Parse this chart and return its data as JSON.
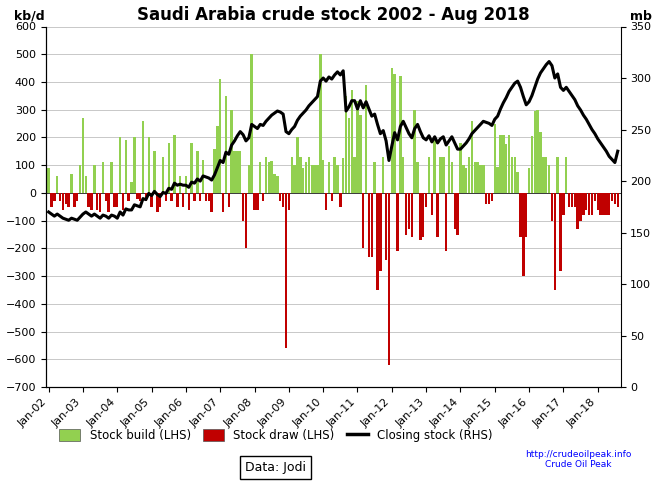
{
  "title": "Saudi Arabia crude stock 2002 - Aug 2018",
  "ylabel_left": "kb/d",
  "ylabel_right": "mb",
  "ylim_left": [
    -700,
    600
  ],
  "ylim_right": [
    0,
    350
  ],
  "yticks_left": [
    -700,
    -600,
    -500,
    -400,
    -300,
    -200,
    -100,
    0,
    100,
    200,
    300,
    400,
    500,
    600
  ],
  "yticks_right": [
    0,
    50,
    100,
    150,
    200,
    250,
    300,
    350
  ],
  "bar_color_pos": "#92D050",
  "bar_color_neg": "#C00000",
  "line_color": "#000000",
  "data_source": "Data: Jodi",
  "bar_values": [
    90,
    -50,
    -30,
    60,
    -30,
    -60,
    -40,
    -50,
    70,
    -50,
    -30,
    100,
    270,
    60,
    -50,
    -60,
    100,
    -60,
    -70,
    110,
    -30,
    -70,
    110,
    -50,
    -50,
    200,
    -60,
    190,
    -30,
    40,
    200,
    -20,
    -30,
    260,
    -30,
    200,
    -50,
    150,
    -70,
    -50,
    130,
    -30,
    180,
    -30,
    210,
    -50,
    60,
    -50,
    60,
    -60,
    180,
    -30,
    150,
    -30,
    120,
    -30,
    -30,
    -70,
    160,
    240,
    410,
    -70,
    350,
    -50,
    300,
    150,
    150,
    150,
    -100,
    -200,
    100,
    500,
    -60,
    -60,
    110,
    -30,
    130,
    110,
    115,
    70,
    60,
    -30,
    -50,
    -560,
    -60,
    130,
    100,
    200,
    130,
    90,
    110,
    130,
    100,
    100,
    100,
    500,
    120,
    -60,
    110,
    -30,
    130,
    100,
    -50,
    125,
    350,
    270,
    370,
    130,
    330,
    280,
    -200,
    390,
    -230,
    -230,
    110,
    -350,
    -280,
    130,
    -240,
    -620,
    450,
    430,
    -210,
    420,
    130,
    -150,
    -130,
    -160,
    300,
    110,
    -170,
    -160,
    -50,
    130,
    -80,
    200,
    -160,
    130,
    130,
    -210,
    170,
    110,
    -130,
    -150,
    180,
    100,
    90,
    130,
    260,
    110,
    110,
    100,
    100,
    -40,
    -40,
    -30,
    250,
    95,
    210,
    210,
    175,
    210,
    130,
    130,
    75,
    -160,
    -300,
    -160,
    90,
    205,
    295,
    300,
    220,
    130,
    130,
    100,
    -100,
    -350,
    130,
    -280,
    -80,
    130,
    -50,
    -50,
    -50,
    -130,
    -100,
    -80,
    -60,
    -80,
    -80,
    -30,
    -60,
    -80,
    -80,
    -80,
    -80,
    -30,
    -40,
    -50
  ],
  "closing_stock_mb": [
    170,
    168,
    166,
    168,
    166,
    164,
    163,
    162,
    164,
    163,
    162,
    165,
    168,
    170,
    168,
    166,
    168,
    166,
    164,
    167,
    166,
    164,
    167,
    166,
    164,
    170,
    167,
    173,
    172,
    172,
    177,
    176,
    175,
    183,
    182,
    188,
    186,
    190,
    187,
    185,
    189,
    188,
    193,
    192,
    198,
    196,
    197,
    196,
    196,
    194,
    199,
    198,
    202,
    200,
    205,
    204,
    203,
    201,
    206,
    213,
    220,
    218,
    228,
    226,
    235,
    239,
    244,
    248,
    245,
    239,
    242,
    255,
    253,
    251,
    255,
    254,
    258,
    261,
    264,
    266,
    268,
    267,
    265,
    248,
    246,
    250,
    253,
    259,
    263,
    266,
    269,
    273,
    276,
    279,
    282,
    297,
    300,
    297,
    301,
    299,
    303,
    306,
    303,
    307,
    268,
    272,
    278,
    278,
    270,
    278,
    271,
    277,
    270,
    263,
    265,
    255,
    246,
    249,
    239,
    220,
    234,
    247,
    240,
    253,
    258,
    252,
    246,
    242,
    251,
    255,
    248,
    242,
    240,
    244,
    238,
    243,
    237,
    241,
    243,
    235,
    239,
    243,
    237,
    231,
    231,
    234,
    237,
    241,
    246,
    249,
    252,
    255,
    258,
    257,
    256,
    254,
    260,
    263,
    270,
    276,
    281,
    287,
    291,
    295,
    297,
    291,
    282,
    274,
    277,
    283,
    291,
    299,
    305,
    309,
    313,
    316,
    312,
    300,
    304,
    291,
    288,
    291,
    287,
    283,
    279,
    273,
    269,
    264,
    260,
    255,
    250,
    246,
    241,
    237,
    233,
    229,
    224,
    221,
    218,
    229
  ]
}
